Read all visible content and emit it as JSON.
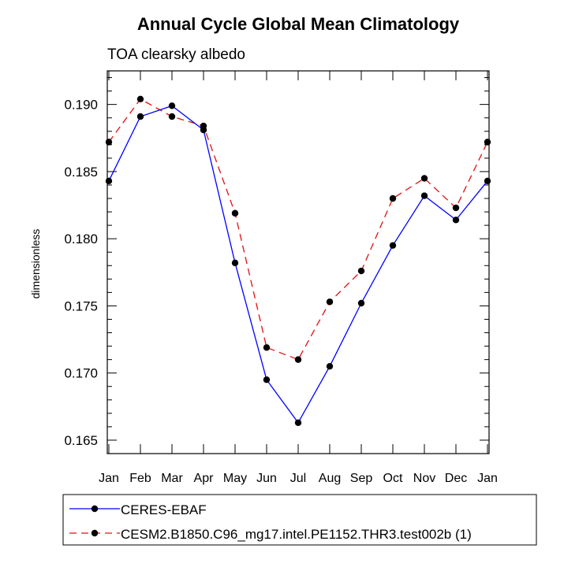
{
  "chart_data": {
    "type": "line",
    "title": "Annual Cycle Global Mean Climatology",
    "subtitle": "TOA clearsky albedo",
    "xlabel": "",
    "ylabel": "dimensionless",
    "categories": [
      "Jan",
      "Feb",
      "Mar",
      "Apr",
      "May",
      "Jun",
      "Jul",
      "Aug",
      "Sep",
      "Oct",
      "Nov",
      "Dec",
      "Jan"
    ],
    "ylim": [
      0.164,
      0.1925
    ],
    "yticks": [
      "0.165",
      "0.170",
      "0.175",
      "0.180",
      "0.185",
      "0.190"
    ],
    "grid": false,
    "legend_position": "bottom",
    "series": [
      {
        "name": "CERES-EBAF",
        "color": "#0000ff",
        "dash": "solid",
        "values": [
          0.1843,
          0.1891,
          0.1899,
          0.1881,
          0.1782,
          0.1695,
          0.1663,
          0.1705,
          0.1752,
          0.1795,
          0.1832,
          0.1814,
          0.1843
        ]
      },
      {
        "name": "CESM2.B1850.C96_mg17.intel.PE1152.THR3.test002b (1)",
        "color": "#e01010",
        "dash": "dashed",
        "values": [
          0.1872,
          0.1904,
          0.1891,
          0.1884,
          0.1819,
          0.1719,
          0.171,
          0.1753,
          0.1776,
          0.183,
          0.1845,
          0.1823,
          0.1872
        ]
      }
    ]
  }
}
